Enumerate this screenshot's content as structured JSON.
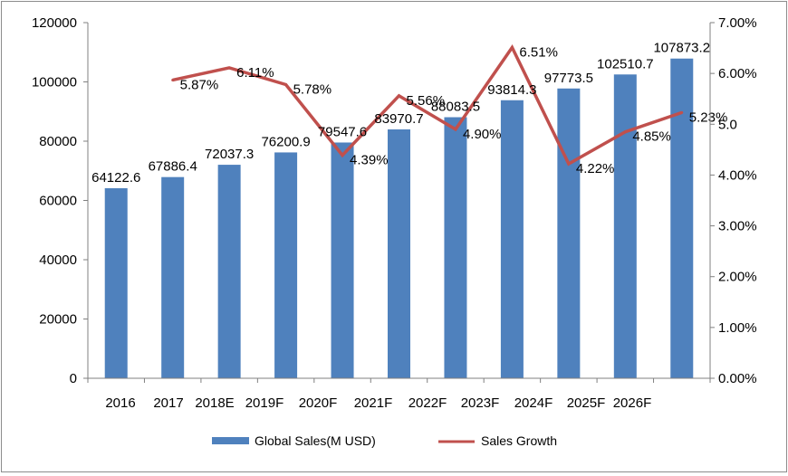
{
  "chart_data": {
    "type": "bar+line",
    "categories": [
      "2016",
      "2017",
      "2018E",
      "2019F",
      "2020F",
      "2021F",
      "2022F",
      "2023F",
      "2024F",
      "2025F",
      "2026F"
    ],
    "series": [
      {
        "name": "Global Sales(M USD)",
        "type": "bar",
        "axis": "left",
        "color": "#4f81bd",
        "values": [
          64122.6,
          67886.4,
          72037.3,
          76200.9,
          79547.6,
          83970.7,
          88083.5,
          93814.3,
          97773.5,
          102510.7,
          107873.2
        ],
        "labels": [
          "64122.6",
          "67886.4",
          "72037.3",
          "76200.9",
          "79547.6",
          "83970.7",
          "88083.5",
          "93814.3",
          "97773.5",
          "102510.7",
          "107873.2"
        ]
      },
      {
        "name": "Sales Growth",
        "type": "line",
        "axis": "right",
        "color": "#c0504d",
        "values": [
          null,
          5.87,
          6.11,
          5.78,
          4.39,
          5.56,
          4.9,
          6.51,
          4.22,
          4.85,
          5.23
        ],
        "labels": [
          "",
          "5.87%",
          "6.11%",
          "5.78%",
          "4.39%",
          "5.56%",
          "4.90%",
          "6.51%",
          "4.22%",
          "4.85%",
          "5.23%"
        ]
      }
    ],
    "y_left": {
      "ylim": [
        0,
        120000
      ],
      "ticks": [
        0,
        20000,
        40000,
        60000,
        80000,
        100000,
        120000
      ],
      "tick_labels": [
        "0",
        "20000",
        "40000",
        "60000",
        "80000",
        "100000",
        "120000"
      ]
    },
    "y_right": {
      "ylim": [
        0,
        7
      ],
      "ticks": [
        0,
        1,
        2,
        3,
        4,
        5,
        6,
        7
      ],
      "tick_labels": [
        "0.00%",
        "1.00%",
        "2.00%",
        "3.00%",
        "4.00%",
        "5.0",
        "6.00%",
        "7.00%"
      ]
    },
    "grid": false,
    "legend_position": "bottom"
  }
}
